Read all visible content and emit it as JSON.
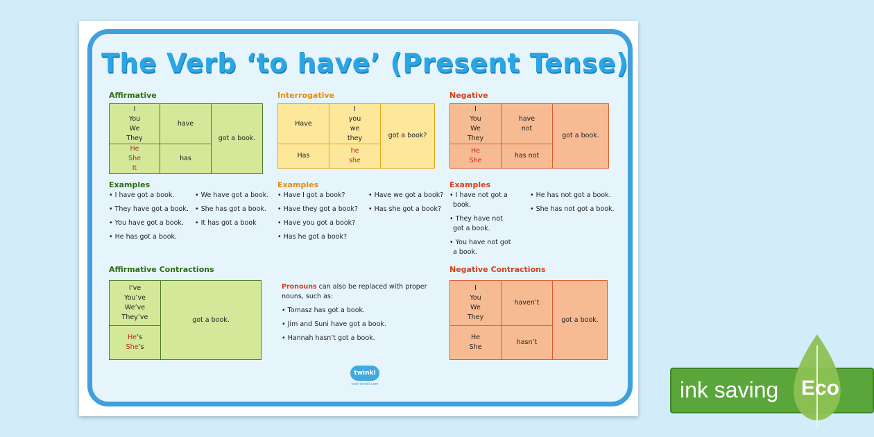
{
  "title": "The Verb ‘to have’ (Present Tense)",
  "affirmative": {
    "heading": "Affirmative",
    "subjects_a": [
      "I",
      "You",
      "We",
      "They"
    ],
    "verb_a": "have",
    "subjects_b": [
      "He",
      "She",
      "It"
    ],
    "verb_b": "has",
    "object": "got a book."
  },
  "interrogative": {
    "heading": "Interrogative",
    "verb_a": "Have",
    "subjects_a": [
      "I",
      "you",
      "we",
      "they"
    ],
    "verb_b": "Has",
    "subjects_b": [
      "he",
      "she"
    ],
    "object": "got a book?"
  },
  "negative": {
    "heading": "Negative",
    "subjects_a": [
      "I",
      "You",
      "We",
      "They"
    ],
    "verb_a": [
      "have",
      "not"
    ],
    "subjects_b": [
      "He",
      "She"
    ],
    "verb_b": "has not",
    "object": "got a book."
  },
  "examples_heading": "Examples",
  "aff_examples_col1": [
    "• I have got a book.",
    "• They have got a book.",
    "• You have got a book.",
    "• He has got a book."
  ],
  "aff_examples_col2": [
    "• We have got a book.",
    "• She has got a book.",
    "• It has got a book"
  ],
  "int_examples_col1": [
    "• Have I got a book?",
    "• Have they got a book?",
    "• Have you got a book?",
    "• Has he got a book?"
  ],
  "int_examples_col2": [
    "• Have we got a book?",
    "• Has she got a book?"
  ],
  "neg_examples_col1": [
    [
      "• I have not got a",
      "book."
    ],
    [
      "• They have not",
      "got a book."
    ],
    [
      "• You have not got",
      "a book."
    ]
  ],
  "neg_examples_col2": [
    "• He has not got a book.",
    "• She has not got a book."
  ],
  "aff_contractions": {
    "heading": "Affirmative Contractions",
    "forms_a": [
      "I’ve",
      "You’ve",
      "We’ve",
      "They’ve"
    ],
    "forms_b_subject": [
      "He",
      "She"
    ],
    "forms_b_suffix": "’s",
    "object": "got a book."
  },
  "pronouns": {
    "highlight": "Pronouns",
    "intro_rest": " can also be replaced with proper nouns, such as:",
    "items": [
      "• Tomasz has got a book.",
      "• Jim and Suni have got a book.",
      "• Hannah hasn’t got a book."
    ]
  },
  "neg_contractions": {
    "heading": "Negative Contractions",
    "subjects_a": [
      "I",
      "You",
      "We",
      "They"
    ],
    "verb_a": "haven’t",
    "subjects_b": [
      "He",
      "She"
    ],
    "verb_b": "hasn’t",
    "object": "got a book."
  },
  "logo": {
    "brand": "twinkl",
    "url": "visit twinkl.com"
  },
  "eco": {
    "label": "ink saving",
    "badge": "Eco"
  },
  "colors": {
    "background": "#d2edf9",
    "frame": "#3fa0dd",
    "green": "#d4e89a",
    "yellow": "#fde79a",
    "orange": "#f7bb94",
    "eco": "#5aa63b"
  }
}
